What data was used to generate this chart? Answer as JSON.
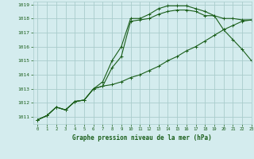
{
  "background_color": "#d4ecee",
  "grid_color": "#aacccc",
  "line_color": "#1a5e1a",
  "xlabel": "Graphe pression niveau de la mer (hPa)",
  "xlim": [
    -0.5,
    23
  ],
  "ylim": [
    1010.5,
    1019.2
  ],
  "xticks": [
    0,
    1,
    2,
    3,
    4,
    5,
    6,
    7,
    8,
    9,
    10,
    11,
    12,
    13,
    14,
    15,
    16,
    17,
    18,
    19,
    20,
    21,
    22,
    23
  ],
  "yticks": [
    1011,
    1012,
    1013,
    1014,
    1015,
    1016,
    1017,
    1018,
    1019
  ],
  "line1_x": [
    0,
    1,
    2,
    3,
    4,
    5,
    6,
    7,
    8,
    9,
    10,
    11,
    12,
    13,
    14,
    15,
    16,
    17,
    18,
    19,
    20,
    21,
    22,
    23
  ],
  "line1_y": [
    1010.8,
    1011.1,
    1011.7,
    1011.5,
    1012.1,
    1012.2,
    1013.0,
    1013.2,
    1013.3,
    1013.5,
    1013.8,
    1014.0,
    1014.3,
    1014.6,
    1015.0,
    1015.3,
    1015.7,
    1016.0,
    1016.4,
    1016.8,
    1017.2,
    1017.5,
    1017.8,
    1017.9
  ],
  "line2_x": [
    0,
    1,
    2,
    3,
    4,
    5,
    6,
    7,
    8,
    9,
    10,
    11,
    12,
    13,
    14,
    15,
    16,
    17,
    18,
    19,
    20,
    21,
    22,
    23
  ],
  "line2_y": [
    1010.8,
    1011.1,
    1011.7,
    1011.5,
    1012.1,
    1012.2,
    1013.0,
    1013.2,
    1014.5,
    1015.3,
    1017.8,
    1017.9,
    1018.0,
    1018.3,
    1018.5,
    1018.6,
    1018.6,
    1018.5,
    1018.2,
    1018.2,
    1018.0,
    1018.0,
    1017.9,
    1017.9
  ],
  "line3_x": [
    0,
    1,
    2,
    3,
    4,
    5,
    6,
    7,
    8,
    9,
    10,
    11,
    12,
    13,
    14,
    15,
    16,
    17,
    18,
    19,
    20,
    21,
    22,
    23
  ],
  "line3_y": [
    1010.8,
    1011.1,
    1011.7,
    1011.5,
    1012.1,
    1012.2,
    1013.0,
    1013.5,
    1015.0,
    1016.0,
    1018.0,
    1018.0,
    1018.3,
    1018.7,
    1018.9,
    1018.9,
    1018.9,
    1018.7,
    1018.5,
    1018.2,
    1017.2,
    1016.5,
    1015.8,
    1015.0
  ]
}
